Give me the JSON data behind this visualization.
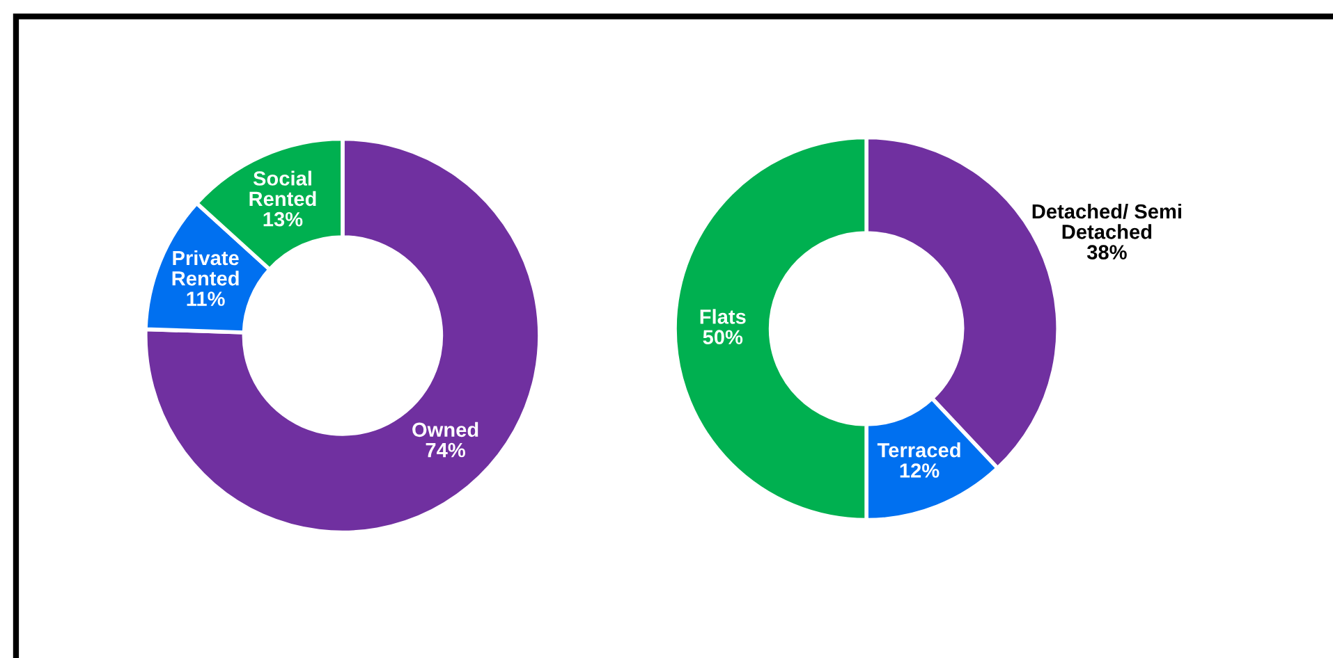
{
  "chart_data": [
    {
      "type": "donut",
      "categories": [
        "Owned",
        "Private\nRented",
        "Social\nRented"
      ],
      "values": [
        74,
        11,
        13
      ],
      "colors": [
        "#7030a0",
        "#0070f0",
        "#00b050"
      ],
      "value_labels": [
        "74%",
        "11%",
        "13%"
      ]
    },
    {
      "type": "donut",
      "categories": [
        "Detached/ Semi\nDetached",
        "Terraced",
        "Flats"
      ],
      "values": [
        38,
        12,
        50
      ],
      "colors": [
        "#7030a0",
        "#0070f0",
        "#00b050"
      ],
      "value_labels": [
        "38%",
        "12%",
        "50%"
      ]
    }
  ]
}
